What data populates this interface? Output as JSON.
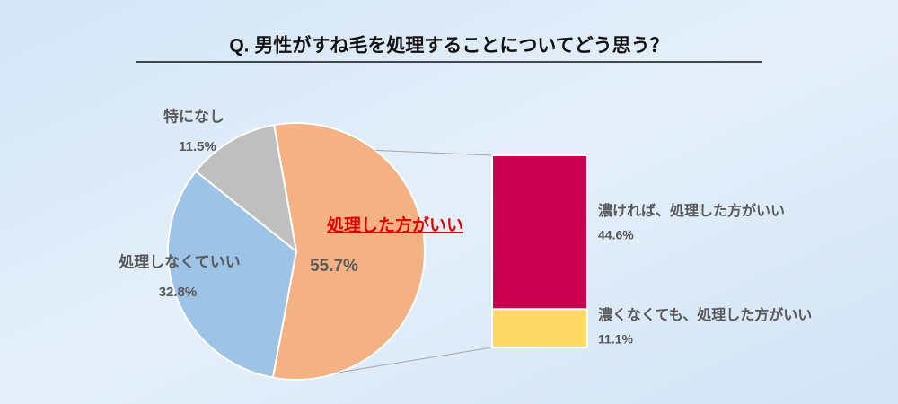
{
  "chart_data": {
    "type": "pie",
    "title": "Q.  男性がすね毛を処理することについてどう思う？",
    "categories": [
      "処理した方がいい",
      "処理しなくていい",
      "特になし"
    ],
    "values": [
      55.7,
      32.8,
      11.5
    ],
    "value_labels": [
      "55.7%",
      "32.8%",
      "11.5%"
    ],
    "colors": [
      "#F4B183",
      "#9DC3E6",
      "#BFBFBF"
    ],
    "breakdown": {
      "categories": [
        "濃ければ、処理した方がいい",
        "濃くなくても、処理した方がいい"
      ],
      "values": [
        44.6,
        11.1
      ],
      "value_labels": [
        "44.6%",
        "11.1%"
      ],
      "colors": [
        "#C9004F",
        "#FFD966"
      ]
    }
  }
}
